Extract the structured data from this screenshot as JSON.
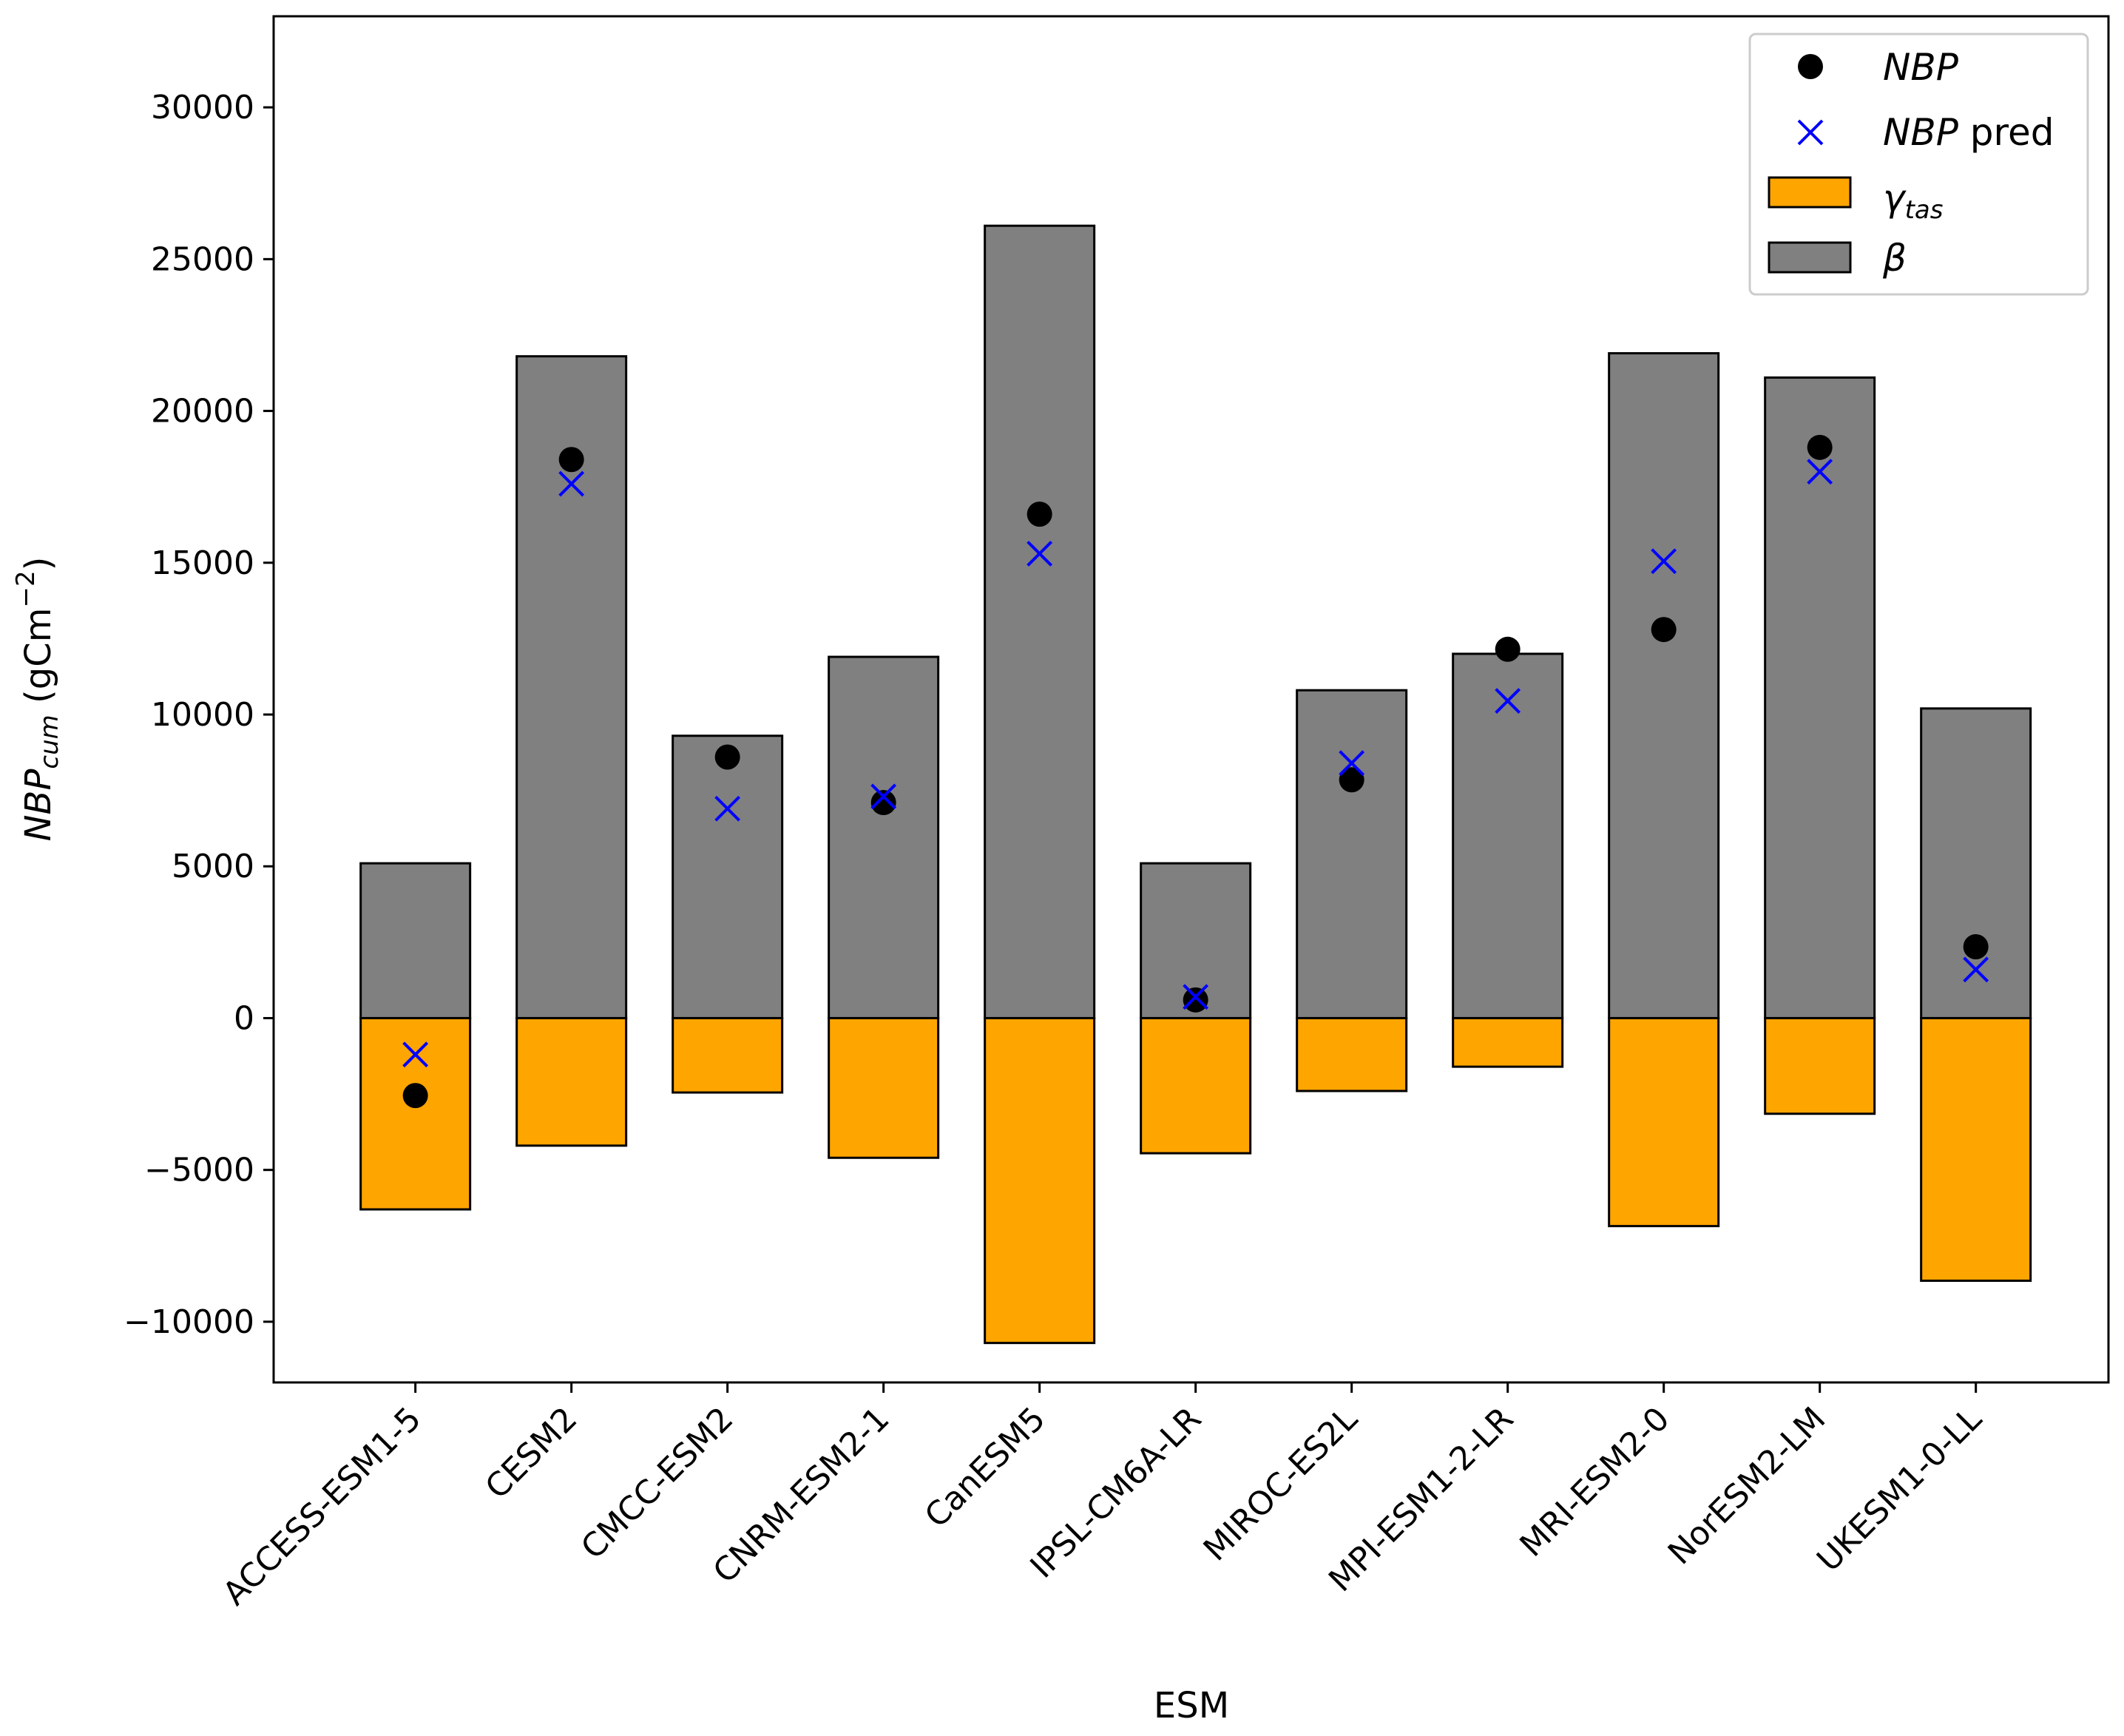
{
  "chart_data": {
    "type": "bar",
    "title": "",
    "xlabel": "ESM",
    "ylabel": {
      "main": "NBP",
      "sub": "cum",
      "units": "(gCm",
      "sup": "−2",
      "close": ")"
    },
    "ylim": [
      -12000,
      33000
    ],
    "yticks": [
      -10000,
      -5000,
      0,
      5000,
      10000,
      15000,
      20000,
      25000,
      30000
    ],
    "ytick_labels": [
      "−10000",
      "−5000",
      "0",
      "5000",
      "10000",
      "15000",
      "20000",
      "25000",
      "30000"
    ],
    "categories": [
      "ACCESS-ESM1-5",
      "CESM2",
      "CMCC-ESM2",
      "CNRM-ESM2-1",
      "CanESM5",
      "IPSL-CM6A-LR",
      "MIROC-ES2L",
      "MPI-ESM1-2-LR",
      "MRI-ESM2-0",
      "NorESM2-LM",
      "UKESM1-0-LL"
    ],
    "series": [
      {
        "name": "β",
        "kind": "bar",
        "color": "#808080",
        "values": [
          5100,
          21800,
          9300,
          11900,
          26100,
          5100,
          10800,
          12000,
          21900,
          21100,
          10200
        ]
      },
      {
        "name": "γtas",
        "kind": "bar",
        "color": "#FFA500",
        "values": [
          -6300,
          -4200,
          -2450,
          -4600,
          -10700,
          -4450,
          -2400,
          -1600,
          -6850,
          -3150,
          -8650
        ]
      },
      {
        "name": "NBP",
        "kind": "scatter",
        "marker": "circle",
        "color": "#000000",
        "values": [
          -2550,
          18400,
          8600,
          7100,
          16600,
          600,
          7850,
          12150,
          12800,
          18800,
          2350
        ]
      },
      {
        "name": "NBP pred",
        "kind": "scatter",
        "marker": "x",
        "color": "#0000FF",
        "values": [
          -1200,
          17600,
          6900,
          7300,
          15300,
          700,
          8400,
          10450,
          15050,
          18000,
          1600
        ]
      }
    ],
    "legend": {
      "position": "top-right",
      "entries": [
        {
          "label_italic": "NBP",
          "label_rest": ""
        },
        {
          "label_italic": "NBP",
          "label_rest": " pred"
        },
        {
          "label_italic": "γ",
          "label_sub": "tas"
        },
        {
          "label_italic": "β"
        }
      ]
    }
  }
}
